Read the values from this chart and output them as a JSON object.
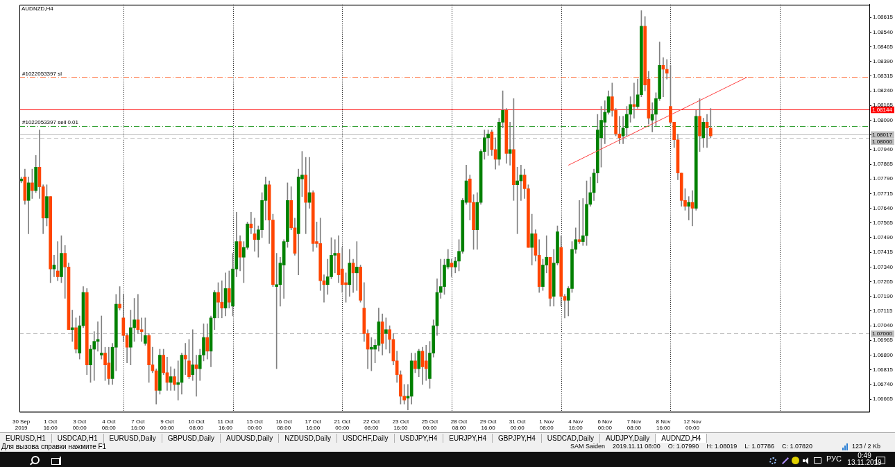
{
  "chart_data": {
    "type": "candlestick",
    "title": "AUDNZD,H4",
    "categories": [
      "30 Sep 2019",
      null,
      null,
      null,
      null,
      null,
      null,
      null,
      "1 Oct 16:00",
      null,
      null,
      null,
      null,
      null,
      null,
      null,
      "3 Oct 00:00",
      null,
      null,
      null,
      null,
      null,
      null,
      null,
      "4 Oct 08:00",
      null,
      null,
      null,
      null,
      null,
      null,
      null,
      "7 Oct 16:00",
      null,
      null,
      null,
      null,
      null,
      null,
      null,
      "9 Oct 00:00",
      null,
      null,
      null,
      null,
      null,
      null,
      null,
      "10 Oct 08:00",
      null,
      null,
      null,
      null,
      null,
      null,
      null,
      "11 Oct 16:00",
      null,
      null,
      null,
      null,
      null,
      null,
      null,
      "15 Oct 00:00",
      null,
      null,
      null,
      null,
      null,
      null,
      null,
      "16 Oct 08:00",
      null,
      null,
      null,
      null,
      null,
      null,
      null,
      "17 Oct 16:00",
      null,
      null,
      null,
      null,
      null,
      null,
      null,
      "21 Oct 00:00",
      null,
      null,
      null,
      null,
      null,
      null,
      null,
      "22 Oct 08:00",
      null,
      null,
      null,
      null,
      null,
      null,
      null,
      "23 Oct 16:00",
      null,
      null,
      null,
      null,
      null,
      null,
      null,
      "25 Oct 00:00",
      null,
      null,
      null,
      null,
      null,
      null,
      null,
      "28 Oct 08:00",
      null,
      null,
      null,
      null,
      null,
      null,
      null,
      "29 Oct 16:00",
      null,
      null,
      null,
      null,
      null,
      null,
      null,
      "31 Oct 00:00",
      null,
      null,
      null,
      null,
      null,
      null,
      null,
      "1 Nov 08:00",
      null,
      null,
      null,
      null,
      null,
      null,
      null,
      "4 Nov 16:00",
      null,
      null,
      null,
      null,
      null,
      null,
      null,
      "6 Nov 00:00",
      null,
      null,
      null,
      null,
      null,
      null,
      null,
      "7 Nov 08:00",
      null,
      null,
      null,
      null,
      null,
      null,
      null,
      "8 Nov 16:00",
      null,
      null,
      null,
      null,
      null,
      null,
      null,
      "12 Nov 00:00",
      null,
      null,
      null,
      null,
      null,
      null,
      null,
      null,
      null,
      null,
      null,
      null,
      null,
      null,
      null,
      null,
      null,
      null,
      null,
      null,
      null,
      null,
      null,
      null,
      null,
      null,
      null,
      null,
      null,
      null,
      null,
      null,
      null,
      null,
      null,
      null,
      null,
      null,
      null,
      null,
      null,
      null,
      null,
      null,
      null,
      null,
      null,
      null
    ],
    "ohlc": [
      [
        1.0778,
        1.078,
        1.0777,
        1.0779
      ],
      [
        1.078,
        1.0784,
        1.0766,
        1.0768
      ],
      [
        1.0768,
        1.078,
        1.0751,
        1.0777
      ],
      [
        1.0777,
        1.0784,
        1.0769,
        1.0773
      ],
      [
        1.0773,
        1.0791,
        1.0772,
        1.0785
      ],
      [
        1.0785,
        1.0804,
        1.0769,
        1.0775
      ],
      [
        1.0775,
        1.0776,
        1.0751,
        1.0759
      ],
      [
        1.0759,
        1.0776,
        1.0755,
        1.077
      ],
      [
        1.077,
        1.077,
        1.0726,
        1.0733
      ],
      [
        1.0733,
        1.074,
        1.0729,
        1.0735
      ],
      [
        1.0732,
        1.0747,
        1.0727,
        1.0729
      ],
      [
        1.0729,
        1.075,
        1.0726,
        1.0741
      ],
      [
        1.0741,
        1.0745,
        1.0718,
        1.0734
      ],
      [
        1.0734,
        1.0736,
        1.0702,
        1.0702
      ],
      [
        1.0702,
        1.0712,
        1.0696,
        1.0703
      ],
      [
        1.0703,
        1.0708,
        1.069,
        1.0692
      ],
      [
        1.069,
        1.0709,
        1.0687,
        1.0704
      ],
      [
        1.0704,
        1.0724,
        1.0703,
        1.0721
      ],
      [
        1.0721,
        1.0723,
        1.0679,
        1.0684
      ],
      [
        1.0684,
        1.0694,
        1.0675,
        1.0692
      ],
      [
        1.0692,
        1.0701,
        1.0676,
        1.0696
      ],
      [
        1.0696,
        1.0706,
        1.0691,
        1.0697
      ],
      [
        1.0689,
        1.0709,
        1.0687,
        1.069
      ],
      [
        1.069,
        1.0693,
        1.0676,
        1.0684
      ],
      [
        1.0685,
        1.0693,
        1.0674,
        1.0677
      ],
      [
        1.0677,
        1.0695,
        1.0674,
        1.0693
      ],
      [
        1.0693,
        1.072,
        1.0681,
        1.0715
      ],
      [
        1.0715,
        1.0724,
        1.0712,
        1.0713
      ],
      [
        1.0708,
        1.072,
        1.0696,
        1.0699
      ],
      [
        1.0699,
        1.07,
        1.0685,
        1.0693
      ],
      [
        1.0693,
        1.0712,
        1.0684,
        1.0703
      ],
      [
        1.0703,
        1.0718,
        1.0696,
        1.0707
      ],
      [
        1.0707,
        1.072,
        1.07,
        1.0702
      ],
      [
        1.0702,
        1.0708,
        1.0696,
        1.0701
      ],
      [
        1.0695,
        1.0708,
        1.0694,
        1.0699
      ],
      [
        1.0699,
        1.07,
        1.0675,
        1.0684
      ],
      [
        1.0684,
        1.0693,
        1.068,
        1.0681
      ],
      [
        1.0681,
        1.0682,
        1.0664,
        1.0671
      ],
      [
        1.0671,
        1.0692,
        1.0669,
        1.0689
      ],
      [
        1.0689,
        1.0692,
        1.0679,
        1.068
      ],
      [
        1.068,
        1.0688,
        1.0671,
        1.0675
      ],
      [
        1.0675,
        1.0683,
        1.0671,
        1.0678
      ],
      [
        1.0678,
        1.0682,
        1.0671,
        1.0674
      ],
      [
        1.0674,
        1.0686,
        1.0666,
        1.0675
      ],
      [
        1.0675,
        1.069,
        1.0669,
        1.0689
      ],
      [
        1.0689,
        1.0695,
        1.0679,
        1.0687
      ],
      [
        1.0686,
        1.0697,
        1.0677,
        1.0678
      ],
      [
        1.0679,
        1.0702,
        1.0676,
        1.0684
      ],
      [
        1.0684,
        1.0689,
        1.0668,
        1.0682
      ],
      [
        1.0682,
        1.0692,
        1.0676,
        1.0689
      ],
      [
        1.0689,
        1.0705,
        1.0686,
        1.0698
      ],
      [
        1.0698,
        1.0705,
        1.0687,
        1.0691
      ],
      [
        1.0691,
        1.0709,
        1.0683,
        1.0708
      ],
      [
        1.0708,
        1.0722,
        1.0702,
        1.0721
      ],
      [
        1.0721,
        1.0726,
        1.0708,
        1.0716
      ],
      [
        1.0716,
        1.0727,
        1.0708,
        1.0713
      ],
      [
        1.0713,
        1.0731,
        1.0709,
        1.0723
      ],
      [
        1.0723,
        1.0732,
        1.0713,
        1.0716
      ],
      [
        1.0714,
        1.0741,
        1.0709,
        1.0733
      ],
      [
        1.0733,
        1.0762,
        1.0729,
        1.0747
      ],
      [
        1.0747,
        1.075,
        1.0732,
        1.0739
      ],
      [
        1.0739,
        1.0747,
        1.0726,
        1.0744
      ],
      [
        1.0744,
        1.0757,
        1.0743,
        1.0756
      ],
      [
        1.0756,
        1.0762,
        1.0751,
        1.0754
      ],
      [
        1.0751,
        1.0759,
        1.0742,
        1.0748
      ],
      [
        1.0748,
        1.0755,
        1.0739,
        1.0753
      ],
      [
        1.0753,
        1.0772,
        1.0749,
        1.0768
      ],
      [
        1.0768,
        1.078,
        1.0758,
        1.0776
      ],
      [
        1.0776,
        1.0778,
        1.0746,
        1.0758
      ],
      [
        1.0758,
        1.0761,
        1.0724,
        1.0725
      ],
      [
        1.0724,
        1.0741,
        1.0682,
        1.0725
      ],
      [
        1.0725,
        1.0739,
        1.0714,
        1.0736
      ],
      [
        1.0735,
        1.0748,
        1.0718,
        1.0747
      ],
      [
        1.0747,
        1.0777,
        1.0744,
        1.0768
      ],
      [
        1.0768,
        1.0775,
        1.0753,
        1.0754
      ],
      [
        1.0754,
        1.0759,
        1.074,
        1.0741
      ],
      [
        1.0751,
        1.0784,
        1.073,
        1.078
      ],
      [
        1.0779,
        1.0793,
        1.077,
        1.0781
      ],
      [
        1.0781,
        1.079,
        1.0751,
        1.0767
      ],
      [
        1.0767,
        1.079,
        1.0764,
        1.0772
      ],
      [
        1.0772,
        1.0773,
        1.0742,
        1.0746
      ],
      [
        1.0747,
        1.0757,
        1.0744,
        1.0746
      ],
      [
        1.0746,
        1.0759,
        1.0722,
        1.0727
      ],
      [
        1.0727,
        1.073,
        1.0716,
        1.0725
      ],
      [
        1.0725,
        1.0738,
        1.072,
        1.0729
      ],
      [
        1.0729,
        1.0749,
        1.0728,
        1.074
      ],
      [
        1.074,
        1.0748,
        1.0731,
        1.0741
      ],
      [
        1.0741,
        1.075,
        1.0726,
        1.073
      ],
      [
        1.0733,
        1.0744,
        1.0721,
        1.0725
      ],
      [
        1.0726,
        1.0731,
        1.0716,
        1.0725
      ],
      [
        1.0725,
        1.0743,
        1.0719,
        1.0736
      ],
      [
        1.0736,
        1.0738,
        1.0721,
        1.0731
      ],
      [
        1.0731,
        1.0747,
        1.0722,
        1.0734
      ],
      [
        1.0734,
        1.0735,
        1.0716,
        1.0717
      ],
      [
        1.0713,
        1.0726,
        1.0696,
        1.07
      ],
      [
        1.07,
        1.0702,
        1.0682,
        1.0692
      ],
      [
        1.0692,
        1.0698,
        1.0681,
        1.0693
      ],
      [
        1.0692,
        1.0697,
        1.0685,
        1.0694
      ],
      [
        1.0694,
        1.0713,
        1.0691,
        1.0706
      ],
      [
        1.0706,
        1.071,
        1.0689,
        1.0695
      ],
      [
        1.07,
        1.0708,
        1.0692,
        1.0702
      ],
      [
        1.0702,
        1.0704,
        1.069,
        1.0697
      ],
      [
        1.0697,
        1.07,
        1.0684,
        1.0686
      ],
      [
        1.0686,
        1.0691,
        1.0675,
        1.0679
      ],
      [
        1.0679,
        1.0681,
        1.0664,
        1.0668
      ],
      [
        1.0668,
        1.0674,
        1.0664,
        1.0666
      ],
      [
        1.0667,
        1.0674,
        1.0661,
        1.0668
      ],
      [
        1.0668,
        1.069,
        1.0664,
        1.0686
      ],
      [
        1.0686,
        1.069,
        1.068,
        1.0682
      ],
      [
        1.0682,
        1.0692,
        1.0678,
        1.0691
      ],
      [
        1.0691,
        1.0693,
        1.0674,
        1.0683
      ],
      [
        1.0686,
        1.0694,
        1.0676,
        1.0682
      ],
      [
        1.0677,
        1.0696,
        1.0672,
        1.069
      ],
      [
        1.069,
        1.0707,
        1.0688,
        1.0704
      ],
      [
        1.0704,
        1.0728,
        1.0699,
        1.0721
      ],
      [
        1.0721,
        1.0738,
        1.0718,
        1.0724
      ],
      [
        1.0724,
        1.0738,
        1.072,
        1.0735
      ],
      [
        1.0734,
        1.0743,
        1.0733,
        1.0738
      ],
      [
        1.0736,
        1.0738,
        1.0729,
        1.0734
      ],
      [
        1.0734,
        1.0739,
        1.0731,
        1.0737
      ],
      [
        1.0737,
        1.0748,
        1.0732,
        1.0742
      ],
      [
        1.0742,
        1.0769,
        1.0741,
        1.0768
      ],
      [
        1.0767,
        1.0786,
        1.0766,
        1.0778
      ],
      [
        1.0779,
        1.0781,
        1.0758,
        1.0767
      ],
      [
        1.0767,
        1.0771,
        1.0743,
        1.0753
      ],
      [
        1.0753,
        1.0772,
        1.0743,
        1.0767
      ],
      [
        1.0767,
        1.0794,
        1.0766,
        1.0793
      ],
      [
        1.0793,
        1.0804,
        1.0789,
        1.08
      ],
      [
        1.08,
        1.0804,
        1.0791,
        1.0802
      ],
      [
        1.0803,
        1.0804,
        1.0791,
        1.0794
      ],
      [
        1.0794,
        1.08,
        1.0784,
        1.0789
      ],
      [
        1.0789,
        1.081,
        1.0786,
        1.0808
      ],
      [
        1.0808,
        1.0824,
        1.0805,
        1.0814
      ],
      [
        1.0814,
        1.0815,
        1.0787,
        1.0792
      ],
      [
        1.0792,
        1.0808,
        1.0786,
        1.0794
      ],
      [
        1.0794,
        1.082,
        1.0768,
        1.0776
      ],
      [
        1.0776,
        1.0785,
        1.0751,
        1.0778
      ],
      [
        1.0778,
        1.0786,
        1.0768,
        1.0781
      ],
      [
        1.0781,
        1.0784,
        1.0769,
        1.0774
      ],
      [
        1.0774,
        1.0776,
        1.0744,
        1.0744
      ],
      [
        1.0744,
        1.0761,
        1.0735,
        1.0751
      ],
      [
        1.0751,
        1.0753,
        1.0737,
        1.074
      ],
      [
        1.074,
        1.0748,
        1.0721,
        1.0724
      ],
      [
        1.0724,
        1.0738,
        1.0722,
        1.0735
      ],
      [
        1.0735,
        1.075,
        1.0731,
        1.0739
      ],
      [
        1.0739,
        1.0739,
        1.0714,
        1.0718
      ],
      [
        1.0719,
        1.0743,
        1.0714,
        1.0736
      ],
      [
        1.0736,
        1.0755,
        1.0735,
        1.0752
      ],
      [
        1.0744,
        1.075,
        1.0714,
        1.0719
      ],
      [
        1.0719,
        1.072,
        1.0708,
        1.0717
      ],
      [
        1.0717,
        1.0724,
        1.0709,
        1.0723
      ],
      [
        1.0723,
        1.0747,
        1.0721,
        1.0743
      ],
      [
        1.0743,
        1.0754,
        1.0741,
        1.0748
      ],
      [
        1.0748,
        1.0768,
        1.0746,
        1.0747
      ],
      [
        1.0747,
        1.0769,
        1.0745,
        1.075
      ],
      [
        1.075,
        1.0778,
        1.0745,
        1.0766
      ],
      [
        1.0766,
        1.078,
        1.0765,
        1.0772
      ],
      [
        1.0772,
        1.0784,
        1.0768,
        1.0782
      ],
      [
        1.0782,
        1.0812,
        1.0777,
        1.0804
      ],
      [
        1.08,
        1.0816,
        1.0785,
        1.0809
      ],
      [
        1.0808,
        1.0819,
        1.0797,
        1.0813
      ],
      [
        1.0813,
        1.0824,
        1.0812,
        1.0821
      ],
      [
        1.0821,
        1.0828,
        1.0811,
        1.0814
      ],
      [
        1.0814,
        1.0815,
        1.0801,
        1.0802
      ],
      [
        1.0802,
        1.0811,
        1.0797,
        1.08
      ],
      [
        1.0801,
        1.0811,
        1.0797,
        1.0805
      ],
      [
        1.0805,
        1.0816,
        1.0801,
        1.0812
      ],
      [
        1.0812,
        1.0821,
        1.0808,
        1.0817
      ],
      [
        1.0817,
        1.0828,
        1.081,
        1.0816
      ],
      [
        1.0816,
        1.083,
        1.0815,
        1.0822
      ],
      [
        1.0822,
        1.0865,
        1.0821,
        1.0857
      ],
      [
        1.0857,
        1.0862,
        1.0824,
        1.0827
      ],
      [
        1.083,
        1.0834,
        1.0807,
        1.081
      ],
      [
        1.0809,
        1.0818,
        1.0803,
        1.0812
      ],
      [
        1.0812,
        1.0823,
        1.0806,
        1.082
      ],
      [
        1.082,
        1.0849,
        1.0819,
        1.0837
      ],
      [
        1.0837,
        1.0841,
        1.0821,
        1.0835
      ],
      [
        1.0835,
        1.084,
        1.083,
        1.0833
      ],
      [
        1.0816,
        1.0837,
        1.0807,
        1.0808
      ],
      [
        1.0808,
        1.0808,
        1.0795,
        1.0799
      ],
      [
        1.0799,
        1.08019,
        1.07786,
        1.0782
      ],
      [
        1.0782,
        1.0782,
        1.0765,
        1.0768
      ],
      [
        1.0768,
        1.0774,
        1.0763,
        1.0765
      ],
      [
        1.0765,
        1.077,
        1.0758,
        1.0767
      ],
      [
        1.0767,
        1.0773,
        1.0755,
        1.0764
      ],
      [
        1.0764,
        1.0814,
        1.0763,
        1.0811
      ],
      [
        1.0811,
        1.082,
        1.0793,
        1.0801
      ],
      [
        1.08,
        1.081,
        1.0795,
        1.0808
      ],
      [
        1.0808,
        1.0812,
        1.0795,
        1.0805
      ],
      [
        1.0805,
        1.0815,
        1.08,
        1.0801
      ],
      null,
      null,
      null,
      null,
      null,
      null,
      null,
      null,
      null,
      null,
      null,
      null,
      null,
      null,
      null,
      null,
      null,
      null,
      null,
      null,
      null,
      null,
      null,
      null,
      null,
      null,
      null,
      null,
      null,
      null,
      null,
      null,
      null,
      null,
      null,
      null,
      null,
      null,
      null,
      null,
      null,
      null,
      null
    ],
    "colors": [
      "#008000",
      "#ff4500",
      "#008000",
      "#ff4500",
      "#008000",
      "#ff4500",
      "#ff4500",
      "#008000",
      "#ff4500",
      "#008000",
      "#ff4500",
      "#008000",
      "#ff4500",
      "#ff4500",
      "#008000",
      "#ff4500",
      "#008000",
      "#008000",
      "#ff4500",
      "#008000",
      "#008000",
      "#008000",
      "#008000",
      "#ff4500",
      "#ff4500",
      "#008000",
      "#008000",
      "#ff4500",
      "#ff4500",
      "#ff4500",
      "#008000",
      "#008000",
      "#ff4500",
      "#ff4500",
      "#008000",
      "#ff4500",
      "#ff4500",
      "#ff4500",
      "#008000",
      "#ff4500",
      "#ff4500",
      "#008000",
      "#ff4500",
      "#008000",
      "#008000",
      "#ff4500",
      "#ff4500",
      "#008000",
      "#ff4500",
      "#008000",
      "#008000",
      "#ff4500",
      "#008000",
      "#008000",
      "#ff4500",
      "#ff4500",
      "#008000",
      "#ff4500",
      "#008000",
      "#008000",
      "#ff4500",
      "#008000",
      "#008000",
      "#ff4500",
      "#ff4500",
      "#008000",
      "#008000",
      "#008000",
      "#ff4500",
      "#ff4500",
      "#008000",
      "#008000",
      "#008000",
      "#008000",
      "#ff4500",
      "#ff4500",
      "#008000",
      "#008000",
      "#ff4500",
      "#008000",
      "#ff4500",
      "#ff4500",
      "#ff4500",
      "#ff4500",
      "#008000",
      "#008000",
      "#008000",
      "#ff4500",
      "#ff4500",
      "#ff4500",
      "#008000",
      "#ff4500",
      "#008000",
      "#ff4500",
      "#ff4500",
      "#ff4500",
      "#008000",
      "#008000",
      "#008000",
      "#ff4500",
      "#008000",
      "#ff4500",
      "#ff4500",
      "#ff4500",
      "#ff4500",
      "#ff4500",
      "#008000",
      "#008000",
      "#ff4500",
      "#008000",
      "#ff4500",
      "#ff4500",
      "#008000",
      "#008000",
      "#008000",
      "#008000",
      "#008000",
      "#008000",
      "#ff4500",
      "#008000",
      "#008000",
      "#008000",
      "#008000",
      "#ff4500",
      "#ff4500",
      "#008000",
      "#008000",
      "#008000",
      "#008000",
      "#ff4500",
      "#ff4500",
      "#008000",
      "#008000",
      "#ff4500",
      "#008000",
      "#ff4500",
      "#008000",
      "#008000",
      "#ff4500",
      "#ff4500",
      "#008000",
      "#ff4500",
      "#ff4500",
      "#008000",
      "#008000",
      "#ff4500",
      "#008000",
      "#008000",
      "#ff4500",
      "#ff4500",
      "#008000",
      "#008000",
      "#008000",
      "#ff4500",
      "#008000",
      "#008000",
      "#008000",
      "#008000",
      "#008000",
      "#008000",
      "#008000",
      "#008000",
      "#ff4500",
      "#ff4500",
      "#ff4500",
      "#008000",
      "#008000",
      "#008000",
      "#ff4500",
      "#008000",
      "#008000",
      "#ff4500",
      "#ff4500",
      "#008000",
      "#008000",
      "#008000",
      "#ff4500",
      "#ff4500",
      "#ff4500",
      "#ff4500",
      "#ff4500",
      "#ff4500",
      "#ff4500",
      "#008000",
      "#ff4500",
      "#008000",
      "#ff4500",
      "#008000",
      "#ff4500",
      "#ff4500",
      null,
      null,
      null,
      null,
      null,
      null,
      null,
      null,
      null,
      null,
      null,
      null,
      null,
      null,
      null,
      null,
      null,
      null,
      null,
      null,
      null,
      null,
      null,
      null,
      null,
      null,
      null,
      null,
      null,
      null,
      null,
      null,
      null,
      null,
      null,
      null,
      null,
      null,
      null,
      null,
      null,
      null,
      null
    ],
    "series": [
      {
        "type": "line",
        "color": "#ff4040",
        "values": [
          null,
          null,
          null,
          null,
          null,
          null,
          null,
          null,
          null,
          null,
          null,
          null,
          null,
          null,
          null,
          null,
          null,
          null,
          null,
          null,
          null,
          null,
          null,
          null,
          null,
          null,
          null,
          null,
          null,
          null,
          null,
          null,
          null,
          null,
          null,
          null,
          null,
          null,
          null,
          null,
          null,
          null,
          null,
          null,
          null,
          null,
          null,
          null,
          null,
          null,
          null,
          null,
          null,
          null,
          null,
          null,
          null,
          null,
          null,
          null,
          null,
          null,
          null,
          null,
          null,
          null,
          null,
          null,
          null,
          null,
          null,
          null,
          null,
          null,
          null,
          null,
          null,
          null,
          null,
          null,
          null,
          null,
          null,
          null,
          null,
          null,
          null,
          null,
          null,
          null,
          null,
          null,
          null,
          null,
          null,
          null,
          null,
          null,
          null,
          null,
          null,
          null,
          null,
          null,
          null,
          null,
          null,
          null,
          null,
          null,
          null,
          null,
          null,
          null,
          null,
          null,
          null,
          null,
          null,
          null,
          null,
          null,
          null,
          null,
          null,
          null,
          null,
          null,
          null,
          null,
          null,
          null,
          null,
          null,
          null,
          null,
          null,
          null,
          null,
          null,
          null,
          null,
          null,
          null,
          null,
          null,
          null,
          null,
          null,
          null,
          1.0786,
          null,
          null,
          null,
          null,
          null,
          null,
          null,
          null,
          null,
          null,
          null,
          null,
          null,
          null,
          null,
          null,
          null,
          null,
          null,
          null,
          null,
          null,
          null,
          null,
          null,
          null,
          null,
          null,
          null,
          null,
          null,
          null,
          null,
          null,
          null,
          null,
          null,
          null,
          null,
          null,
          null,
          null,
          null,
          null,
          null,
          null,
          null,
          null,
          1.0831,
          null,
          null,
          null,
          null,
          null,
          null,
          null,
          null,
          null,
          null,
          null,
          null,
          null,
          null,
          null,
          null,
          null,
          null,
          null,
          null,
          null,
          null,
          null,
          null,
          null,
          null,
          null,
          null,
          null,
          null,
          null,
          null,
          null
        ]
      }
    ],
    "ylim": [
      1.066,
      1.0868
    ],
    "yticks": [
      1.06665,
      {
        "value": 1.0674,
        "label": "1.06740"
      },
      1.06815,
      {
        "value": 1.0689,
        "label": "1.06890"
      },
      1.06965,
      {
        "value": 1.0704,
        "label": "1.07040"
      },
      1.07115,
      {
        "value": 1.0719,
        "label": "1.07190"
      },
      1.07265,
      {
        "value": 1.0734,
        "label": "1.07340"
      },
      1.07415,
      {
        "value": 1.0749,
        "label": "1.07490"
      },
      1.07565,
      {
        "value": 1.0764,
        "label": "1.07640"
      },
      1.07715,
      {
        "value": 1.0779,
        "label": "1.07790"
      },
      1.07865,
      {
        "value": 1.0794,
        "label": "1.07940"
      },
      {
        "value": 1.08015,
        "label": null
      },
      {
        "value": 1.0809,
        "label": "1.08090"
      },
      1.08165,
      {
        "value": 1.0824,
        "label": "1.08240"
      },
      1.08315,
      {
        "value": 1.0839,
        "label": "1.08390"
      },
      1.08465,
      {
        "value": 1.0854,
        "label": "1.08540"
      },
      1.08615
    ],
    "grid": "x",
    "ref_lines": [
      {
        "axis": "y",
        "value": 1.0831,
        "label": "#1022053397 sl",
        "color": "#ff7f50",
        "line_style": "dotted"
      },
      {
        "axis": "y",
        "value": 1.08144,
        "label": "1.08144",
        "color": "#ff0000",
        "line_style": "solid"
      },
      {
        "axis": "y",
        "value": 1.0806,
        "label": "#1022053397 sell 0.01",
        "color": "#32a032",
        "line_style": "dotted"
      },
      {
        "axis": "y",
        "value": 1.08017,
        "label": "1.08017",
        "color": "#c0c0c0",
        "line_style": "solid"
      },
      {
        "axis": "y",
        "value": 1.08,
        "label": "1.08000",
        "color": "#c0c0c0",
        "line_style": "dashed"
      },
      {
        "axis": "y",
        "value": 1.07,
        "label": "1.07000",
        "color": "#c0c0c0",
        "line_style": "dashed"
      }
    ],
    "annotations": [
      "EURUSD,H1",
      "USDCAD,H1",
      "EURUSD,Daily",
      "GBPUSD,Daily",
      "AUDUSD,Daily",
      "NZDUSD,Daily",
      "USDCHF,Daily",
      "USDJPY,H4",
      "EURJPY,H4",
      "GBPJPY,H4",
      "USDCAD,Daily",
      "AUDJPY,Daily",
      "AUDNZD,H4",
      "Для вызова справки нажмите F1",
      "SAM Saiden",
      "2019.11.11 08:00",
      "O: 1.07990",
      "H: 1.08019",
      "L: 1.07786",
      "C: 1.07820",
      "123 / 2 Kb",
      "РУС",
      "0:49",
      "13.11.2019"
    ]
  }
}
